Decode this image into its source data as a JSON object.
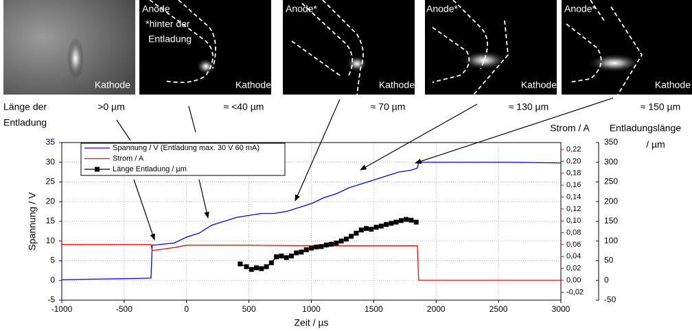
{
  "images": [
    {
      "labels": [
        "Kathode"
      ],
      "length": ">0 µm"
    },
    {
      "labels": [
        "Anode",
        "*hinter der",
        "Entladung",
        "Kathode"
      ],
      "length": "≈ <40 µm"
    },
    {
      "labels": [
        "Anode*",
        "Kathode"
      ],
      "length": "≈ 70 µm"
    },
    {
      "labels": [
        "Anode*",
        "Kathode"
      ],
      "length": "≈ 130 µm"
    },
    {
      "labels": [
        "Anode*",
        "Kathode"
      ],
      "length": "≈ 150 µm"
    }
  ],
  "length_caption": [
    "Länge der",
    "Entladung"
  ],
  "chart_data": {
    "type": "line",
    "xlabel": "Zeit / µs",
    "ylabel": "Spannung / V",
    "y2label": "Strom / A",
    "y3label": [
      "Entladungslänge",
      "/ µm"
    ],
    "xlim": [
      -1000,
      3000
    ],
    "xticks": [
      -1000,
      -500,
      0,
      500,
      1000,
      1500,
      2000,
      2500,
      3000
    ],
    "ylim": [
      -5,
      35
    ],
    "yticks": [
      -5,
      0,
      5,
      10,
      15,
      20,
      25,
      30,
      35
    ],
    "y2lim": [
      -0.0334,
      0.2316
    ],
    "y2ticks": [
      {
        "value": -0.02,
        "label": "-0,02"
      },
      {
        "value": 0,
        "label": "0,00"
      },
      {
        "value": 0.02,
        "label": "0,02"
      },
      {
        "value": 0.04,
        "label": "0,04"
      },
      {
        "value": 0.06,
        "label": "0,06"
      },
      {
        "value": 0.08,
        "label": "0,08"
      },
      {
        "value": 0.1,
        "label": "0,10"
      },
      {
        "value": 0.12,
        "label": "0,12"
      },
      {
        "value": 0.14,
        "label": "0,14"
      },
      {
        "value": 0.16,
        "label": "0,16"
      },
      {
        "value": 0.18,
        "label": "0,18"
      },
      {
        "value": 0.2,
        "label": "0,20"
      },
      {
        "value": 0.22,
        "label": "0,22"
      }
    ],
    "y3lim": [
      -50,
      350
    ],
    "y3ticks": [
      -50,
      0,
      50,
      100,
      150,
      200,
      250,
      300,
      350
    ],
    "grid": true,
    "series": [
      {
        "name": "Spannung / V (Entladung max. 30 V 60 mA)",
        "color": "#0000ff",
        "axis": "y",
        "x": [
          -1000,
          -800,
          -600,
          -400,
          -285,
          -275,
          -250,
          -100,
          0,
          100,
          200,
          300,
          400,
          500,
          600,
          700,
          800,
          900,
          1000,
          1100,
          1200,
          1300,
          1400,
          1500,
          1600,
          1700,
          1800,
          1850,
          1860,
          2200,
          2600,
          3000
        ],
        "values": [
          0.2,
          0.3,
          0.4,
          0.5,
          0.6,
          9,
          9,
          9.5,
          11,
          12,
          14,
          15,
          16,
          16.5,
          17,
          17,
          17.5,
          18.5,
          19.5,
          21,
          22,
          23.5,
          24.5,
          25.5,
          26.5,
          27.5,
          28,
          28.5,
          30,
          30,
          30,
          29.8
        ]
      },
      {
        "name": "Strom / A",
        "color": "#ff0000",
        "axis": "y2",
        "x": [
          -1000,
          -285,
          -275,
          -100,
          0,
          500,
          1000,
          1500,
          1850,
          1860,
          2500,
          3000
        ],
        "values": [
          0.06,
          0.06,
          0.05,
          0.055,
          0.059,
          0.059,
          0.058,
          0.058,
          0.058,
          0,
          0,
          0
        ]
      },
      {
        "name": "Länge Entladung / µm",
        "color": "#000000",
        "axis": "y3",
        "marker": "square",
        "x": [
          430,
          480,
          520,
          560,
          600,
          640,
          680,
          720,
          760,
          800,
          840,
          880,
          920,
          960,
          1000,
          1040,
          1080,
          1120,
          1160,
          1200,
          1240,
          1280,
          1320,
          1360,
          1400,
          1440,
          1480,
          1520,
          1560,
          1600,
          1640,
          1680,
          1720,
          1760,
          1800,
          1840
        ],
        "values": [
          42,
          35,
          28,
          32,
          30,
          35,
          45,
          60,
          62,
          58,
          62,
          70,
          72,
          78,
          82,
          85,
          86,
          90,
          92,
          95,
          100,
          105,
          112,
          120,
          128,
          132,
          130,
          135,
          138,
          142,
          145,
          148,
          152,
          155,
          153,
          148
        ]
      }
    ]
  }
}
